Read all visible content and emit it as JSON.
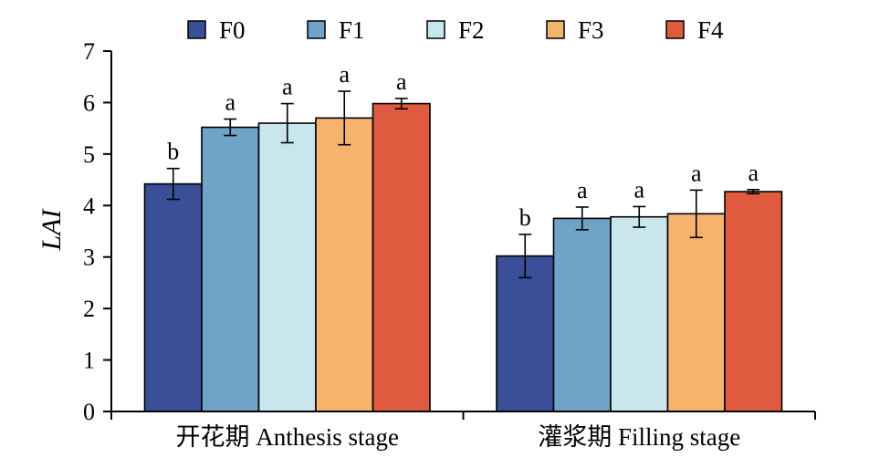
{
  "chart_data": {
    "type": "bar",
    "title": "",
    "xlabel": "",
    "ylabel": "LAI",
    "ylim": [
      0,
      7
    ],
    "yticks": [
      0,
      1,
      2,
      3,
      4,
      5,
      6,
      7
    ],
    "grid": false,
    "legend_position": "top",
    "categories": [
      "开花期 Anthesis stage",
      "灌浆期 Filling stage"
    ],
    "series": [
      {
        "name": "F0",
        "color": "#3a4f98",
        "values": [
          4.42,
          3.02
        ],
        "errors": [
          0.3,
          0.42
        ],
        "labels": [
          "b",
          "b"
        ]
      },
      {
        "name": "F1",
        "color": "#6fa3c8",
        "values": [
          5.52,
          3.75
        ],
        "errors": [
          0.16,
          0.22
        ],
        "labels": [
          "a",
          "a"
        ]
      },
      {
        "name": "F2",
        "color": "#c9e5ee",
        "values": [
          5.6,
          3.78
        ],
        "errors": [
          0.38,
          0.2
        ],
        "labels": [
          "a",
          "a"
        ]
      },
      {
        "name": "F3",
        "color": "#f5b36e",
        "values": [
          5.7,
          3.84
        ],
        "errors": [
          0.52,
          0.46
        ],
        "labels": [
          "a",
          "a"
        ]
      },
      {
        "name": "F4",
        "color": "#df5a3f",
        "values": [
          5.98,
          4.27
        ],
        "errors": [
          0.1,
          0.04
        ],
        "labels": [
          "a",
          "a"
        ]
      }
    ]
  }
}
